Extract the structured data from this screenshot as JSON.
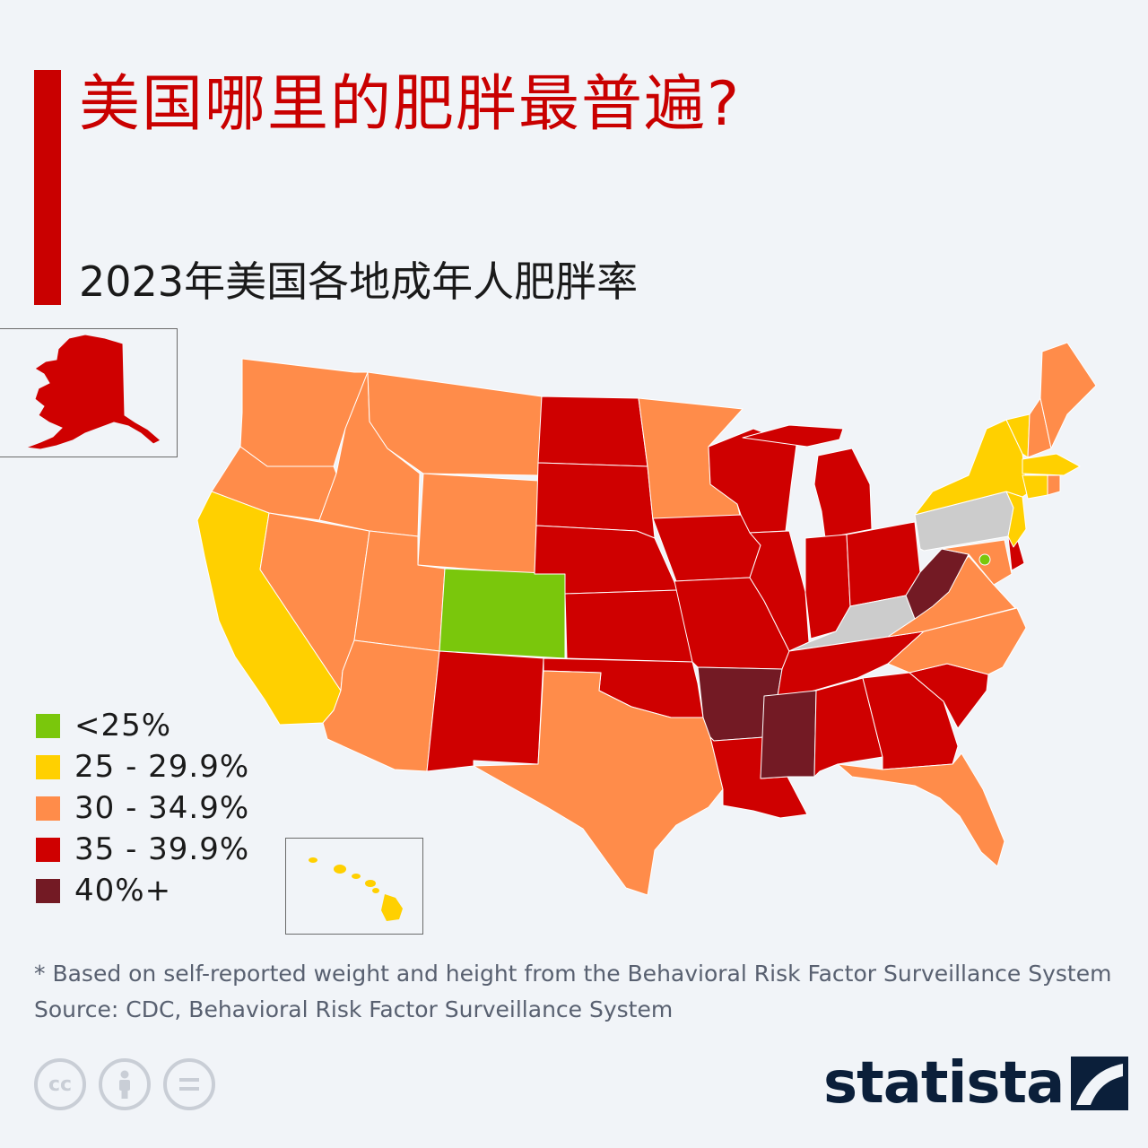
{
  "header": {
    "title": "美国哪里的肥胖最普遍?",
    "subtitle": "2023年美国各地成年人肥胖率"
  },
  "colors": {
    "accent": "#c90000",
    "lt25": "#7ac70c",
    "r25_29": "#ffd000",
    "r30_34": "#ff8c4a",
    "r35_39": "#cf0000",
    "r40p": "#731a24",
    "nodata": "#cccccc"
  },
  "legend": [
    {
      "label": "<25%",
      "color": "#7ac70c"
    },
    {
      "label": "25 - 29.9%",
      "color": "#ffd000"
    },
    {
      "label": "30 - 34.9%",
      "color": "#ff8c4a"
    },
    {
      "label": "35 - 39.9%",
      "color": "#cf0000"
    },
    {
      "label": "40%+",
      "color": "#731a24"
    }
  ],
  "map_data": {
    "WA": "30-34.9%",
    "OR": "30-34.9%",
    "CA": "25-29.9%",
    "NV": "30-34.9%",
    "ID": "30-34.9%",
    "MT": "30-34.9%",
    "WY": "30-34.9%",
    "UT": "30-34.9%",
    "AZ": "30-34.9%",
    "CO": "<25%",
    "NM": "35-39.9%",
    "ND": "35-39.9%",
    "SD": "35-39.9%",
    "NE": "35-39.9%",
    "KS": "35-39.9%",
    "OK": "35-39.9%",
    "TX": "30-34.9%",
    "MN": "30-34.9%",
    "IA": "35-39.9%",
    "MO": "35-39.9%",
    "AR": "40%+",
    "LA": "35-39.9%",
    "WI": "35-39.9%",
    "IL": "35-39.9%",
    "MI": "35-39.9%",
    "IN": "35-39.9%",
    "OH": "35-39.9%",
    "KY": "no data",
    "TN": "35-39.9%",
    "MS": "40%+",
    "AL": "35-39.9%",
    "GA": "35-39.9%",
    "FL": "30-34.9%",
    "SC": "35-39.9%",
    "NC": "30-34.9%",
    "VA": "30-34.9%",
    "WV": "40%+",
    "PA": "no data",
    "NY": "25-29.9%",
    "VT": "25-29.9%",
    "NH": "30-34.9%",
    "ME": "30-34.9%",
    "MA": "25-29.9%",
    "CT": "25-29.9%",
    "RI": "30-34.9%",
    "NJ": "25-29.9%",
    "DE": "35-39.9%",
    "MD": "30-34.9%",
    "DC": "<25%",
    "AK": "35-39.9%",
    "HI": "25-29.9%"
  },
  "footnote": {
    "note": "* Based on self-reported weight and height from the Behavioral Risk Factor Surveillance System",
    "source": "Source: CDC, Behavioral Risk Factor Surveillance System"
  },
  "license_icons": [
    "cc-icon",
    "attribution-icon",
    "no-derivatives-icon"
  ],
  "brand": {
    "name": "statista"
  }
}
